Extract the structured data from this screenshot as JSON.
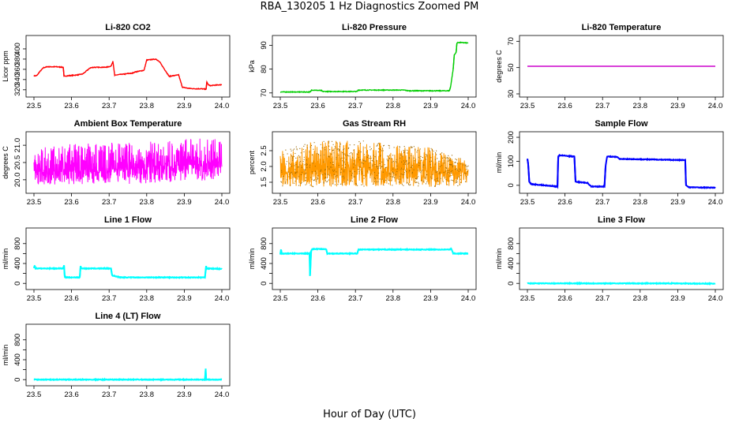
{
  "page": {
    "title": "RBA_130205  1 Hz Diagnostics Zoomed PM",
    "xlabel": "Hour of Day (UTC)"
  },
  "colors": {
    "co2": "#ff0000",
    "pressure": "#00cc00",
    "temperature": "#cc00cc",
    "ambient": "#ff00ff",
    "rh": "#ff9900",
    "rh_points": "#996600",
    "sample_flow": "#0000ff",
    "line_flow": "#00ffff"
  },
  "chart_data": [
    {
      "type": "line",
      "title": "Li-820 CO2",
      "ylabel": "Licor ppm",
      "color_key": "co2",
      "xlim": [
        23.5,
        24.0
      ],
      "ylim": [
        312,
        420
      ],
      "xticks": [
        23.5,
        23.6,
        23.7,
        23.8,
        23.9,
        24.0
      ],
      "xtick_labels": [
        "23.5",
        "23.6",
        "23.7",
        "23.8",
        "23.9",
        "24.0"
      ],
      "yticks": [
        320,
        340,
        360,
        380,
        400
      ],
      "ytick_labels": [
        "320",
        "340",
        "360",
        "380",
        "400"
      ],
      "series": [
        {
          "x": [
            23.5,
            23.508,
            23.515,
            23.525,
            23.535,
            23.55,
            23.56,
            23.578,
            23.58,
            23.585,
            23.6,
            23.615,
            23.63,
            23.645,
            23.65,
            23.66,
            23.675,
            23.69,
            23.705,
            23.71,
            23.715,
            23.72,
            23.73,
            23.745,
            23.75,
            23.76,
            23.77,
            23.785,
            23.793,
            23.8,
            23.81,
            23.825,
            23.835,
            23.86,
            23.865,
            23.875,
            23.885,
            23.895,
            23.91,
            23.925,
            23.935,
            23.945,
            23.958,
            23.96,
            23.965,
            23.97,
            23.98,
            24.0
          ],
          "y": [
            347,
            348,
            355,
            363,
            365,
            365,
            365,
            364,
            346,
            347,
            348,
            349,
            351,
            360,
            363,
            364,
            364,
            364,
            366,
            376,
            348,
            349,
            350,
            351,
            352,
            352,
            355,
            357,
            358,
            378,
            379,
            380,
            374,
            346,
            347,
            348,
            349,
            325,
            323,
            322,
            322,
            322,
            321,
            335,
            329,
            328,
            329,
            330
          ]
        }
      ]
    },
    {
      "type": "line",
      "title": "Li-820 Pressure",
      "ylabel": "kPa",
      "color_key": "pressure",
      "xlim": [
        23.5,
        24.0
      ],
      "ylim": [
        69.6,
        92.8
      ],
      "xticks": [
        23.5,
        23.6,
        23.7,
        23.8,
        23.9,
        24.0
      ],
      "xtick_labels": [
        "23.5",
        "23.6",
        "23.7",
        "23.8",
        "23.9",
        "24.0"
      ],
      "yticks": [
        70,
        80,
        90
      ],
      "ytick_labels": [
        "70",
        "80",
        "90"
      ],
      "series": [
        {
          "x": [
            23.5,
            23.58,
            23.583,
            23.61,
            23.612,
            23.705,
            23.707,
            23.83,
            23.84,
            23.95,
            23.953,
            23.96,
            23.963,
            23.968,
            23.97,
            23.975,
            24.0
          ],
          "y": [
            70.4,
            70.4,
            71.2,
            71.0,
            70.6,
            70.6,
            71.2,
            71.2,
            70.9,
            70.9,
            72.5,
            80,
            86,
            87,
            91.0,
            91.2,
            91.0
          ]
        }
      ]
    },
    {
      "type": "line",
      "title": "Li-820 Temperature",
      "ylabel": "degrees C",
      "color_key": "temperature",
      "xlim": [
        23.5,
        24.0
      ],
      "ylim": [
        30,
        72
      ],
      "xticks": [
        23.5,
        23.6,
        23.7,
        23.8,
        23.9,
        24.0
      ],
      "xtick_labels": [
        "23.5",
        "23.6",
        "23.7",
        "23.8",
        "23.9",
        "24.0"
      ],
      "yticks": [
        30,
        50,
        70
      ],
      "ytick_labels": [
        "30",
        "50",
        "70"
      ],
      "series": [
        {
          "x": [
            23.5,
            24.0
          ],
          "y": [
            51.0,
            51.0
          ]
        }
      ]
    },
    {
      "type": "line",
      "title": "Ambient Box Temperature",
      "ylabel": "degrees C",
      "color_key": "ambient",
      "xlim": [
        23.5,
        24.0
      ],
      "ylim": [
        19.7,
        21.3
      ],
      "xticks": [
        23.5,
        23.6,
        23.7,
        23.8,
        23.9,
        24.0
      ],
      "xtick_labels": [
        "23.5",
        "23.6",
        "23.7",
        "23.8",
        "23.9",
        "24.0"
      ],
      "yticks": [
        20.0,
        20.5,
        21.0
      ],
      "ytick_labels": [
        "20.0",
        "20.5",
        "21.0"
      ],
      "series": [
        {
          "x": [
            23.5,
            23.6,
            23.7,
            23.8,
            23.9,
            24.0
          ],
          "y": [
            20.2,
            20.3,
            20.3,
            20.4,
            20.4,
            20.5
          ],
          "y_min": [
            19.85,
            19.85,
            19.85,
            19.9,
            19.95,
            20.0
          ],
          "y_max": [
            20.9,
            21.05,
            21.1,
            21.1,
            21.2,
            21.2
          ]
        }
      ]
    },
    {
      "type": "line",
      "title": "Gas Stream RH",
      "ylabel": "percent",
      "color_key": "rh",
      "xlim": [
        23.5,
        24.0
      ],
      "ylim": [
        1.25,
        3.0
      ],
      "xticks": [
        23.5,
        23.6,
        23.7,
        23.8,
        23.9,
        24.0
      ],
      "xtick_labels": [
        "23.5",
        "23.6",
        "23.7",
        "23.8",
        "23.9",
        "24.0"
      ],
      "yticks": [
        1.5,
        2.0,
        2.5
      ],
      "ytick_labels": [
        "1.5",
        "2.0",
        "2.5"
      ],
      "series": [
        {
          "x": [
            23.5,
            23.6,
            23.7,
            23.8,
            23.9,
            24.0
          ],
          "y": [
            1.8,
            1.9,
            2.0,
            1.9,
            1.85,
            1.8
          ],
          "y_min": [
            1.35,
            1.35,
            1.35,
            1.4,
            1.35,
            1.4
          ],
          "y_max": [
            2.5,
            2.8,
            2.85,
            2.7,
            2.6,
            2.2
          ]
        }
      ]
    },
    {
      "type": "line",
      "title": "Sample Flow",
      "ylabel": "ml/min",
      "color_key": "sample_flow",
      "xlim": [
        23.5,
        24.0
      ],
      "ylim": [
        -20,
        210
      ],
      "xticks": [
        23.5,
        23.6,
        23.7,
        23.8,
        23.9,
        24.0
      ],
      "xtick_labels": [
        "23.5",
        "23.6",
        "23.7",
        "23.8",
        "23.9",
        "24.0"
      ],
      "yticks": [
        0,
        100,
        200
      ],
      "ytick_labels": [
        "0",
        "100",
        "200"
      ],
      "series": [
        {
          "x": [
            23.5,
            23.502,
            23.505,
            23.51,
            23.58,
            23.582,
            23.585,
            23.625,
            23.628,
            23.66,
            23.67,
            23.705,
            23.708,
            23.712,
            23.74,
            23.745,
            23.92,
            23.922,
            23.93,
            24.0
          ],
          "y": [
            110,
            90,
            15,
            5,
            -5,
            120,
            125,
            120,
            15,
            10,
            -5,
            -5,
            80,
            120,
            118,
            110,
            105,
            0,
            -8,
            -10
          ]
        }
      ]
    },
    {
      "type": "line",
      "title": "Line 1 Flow",
      "ylabel": "ml/min",
      "color_key": "line_flow",
      "xlim": [
        23.5,
        24.0
      ],
      "ylim": [
        -60,
        1050
      ],
      "xticks": [
        23.5,
        23.6,
        23.7,
        23.8,
        23.9,
        24.0
      ],
      "xtick_labels": [
        "23.5",
        "23.6",
        "23.7",
        "23.8",
        "23.9",
        "24.0"
      ],
      "yticks": [
        0,
        200,
        400,
        600,
        800
      ],
      "ytick_labels": [
        "0",
        "400",
        "800"
      ],
      "series": [
        {
          "x": [
            23.5,
            23.502,
            23.504,
            23.578,
            23.58,
            23.582,
            23.622,
            23.624,
            23.626,
            23.705,
            23.708,
            23.73,
            23.95,
            23.955,
            23.958,
            23.96,
            24.0
          ],
          "y": [
            310,
            360,
            300,
            300,
            360,
            120,
            120,
            350,
            300,
            300,
            160,
            120,
            120,
            120,
            350,
            300,
            290
          ]
        }
      ]
    },
    {
      "type": "line",
      "title": "Line 2 Flow",
      "ylabel": "ml/min",
      "color_key": "line_flow",
      "xlim": [
        23.5,
        24.0
      ],
      "ylim": [
        -60,
        1050
      ],
      "xticks": [
        23.5,
        23.6,
        23.7,
        23.8,
        23.9,
        24.0
      ],
      "xtick_labels": [
        "23.5",
        "23.6",
        "23.7",
        "23.8",
        "23.9",
        "24.0"
      ],
      "yticks": [
        0,
        200,
        400,
        600,
        800
      ],
      "ytick_labels": [
        "0",
        "400",
        "800"
      ],
      "series": [
        {
          "x": [
            23.5,
            23.502,
            23.504,
            23.578,
            23.579,
            23.58,
            23.582,
            23.585,
            23.622,
            23.625,
            23.705,
            23.708,
            23.95,
            23.955,
            23.96,
            24.0
          ],
          "y": [
            580,
            680,
            600,
            600,
            150,
            300,
            650,
            690,
            690,
            600,
            600,
            680,
            680,
            700,
            600,
            600
          ]
        }
      ]
    },
    {
      "type": "line",
      "title": "Line 3 Flow",
      "ylabel": "ml/min",
      "color_key": "line_flow",
      "xlim": [
        23.5,
        24.0
      ],
      "ylim": [
        -60,
        1050
      ],
      "xticks": [
        23.5,
        23.6,
        23.7,
        23.8,
        23.9,
        24.0
      ],
      "xtick_labels": [
        "23.5",
        "23.6",
        "23.7",
        "23.8",
        "23.9",
        "24.0"
      ],
      "yticks": [
        0,
        200,
        400,
        600,
        800
      ],
      "ytick_labels": [
        "0",
        "400",
        "800"
      ],
      "series": [
        {
          "x": [
            23.5,
            23.7,
            23.9,
            23.95,
            24.0
          ],
          "y": [
            0,
            0,
            0,
            -5,
            -5
          ]
        }
      ]
    },
    {
      "type": "line",
      "title": "Line 4 (LT) Flow",
      "ylabel": "ml/min",
      "color_key": "line_flow",
      "xlim": [
        23.5,
        24.0
      ],
      "ylim": [
        -60,
        1050
      ],
      "xticks": [
        23.5,
        23.6,
        23.7,
        23.8,
        23.9,
        24.0
      ],
      "xtick_labels": [
        "23.5",
        "23.6",
        "23.7",
        "23.8",
        "23.9",
        "24.0"
      ],
      "yticks": [
        0,
        200,
        400,
        600,
        800
      ],
      "ytick_labels": [
        "0",
        "400",
        "800"
      ],
      "series": [
        {
          "x": [
            23.5,
            23.6,
            23.7,
            23.8,
            23.9,
            23.955,
            23.957,
            23.958,
            23.96,
            24.0
          ],
          "y": [
            0,
            0,
            0,
            0,
            0,
            0,
            220,
            0,
            0,
            0
          ]
        }
      ]
    }
  ]
}
